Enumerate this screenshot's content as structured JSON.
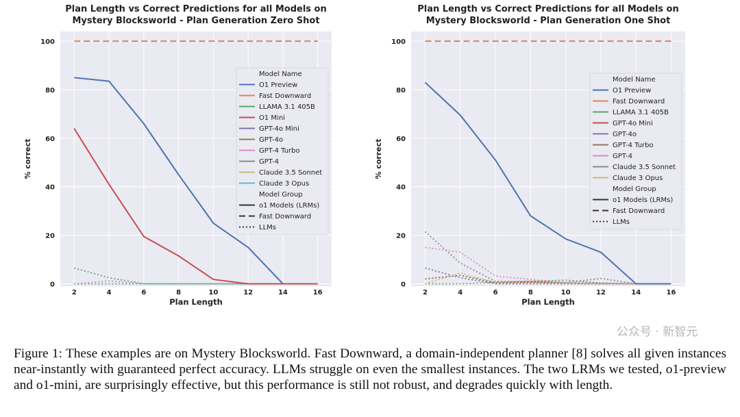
{
  "chart_data": [
    {
      "type": "line",
      "title": "Plan Length vs Correct Predictions for all Models on\nMystery Blocksworld - Plan Generation Zero Shot",
      "xlabel": "Plan Length",
      "ylabel": "% correct",
      "x": [
        2,
        4,
        6,
        8,
        10,
        12,
        14,
        16
      ],
      "xticks": [
        "2",
        "4",
        "6",
        "8",
        "10",
        "12",
        "14",
        "16"
      ],
      "yticks": [
        "0",
        "20",
        "40",
        "60",
        "80",
        "100"
      ],
      "xlim": [
        1.2,
        16.8
      ],
      "ylim": [
        -1,
        104
      ],
      "grid": true,
      "legend_position": "right",
      "legend_title_models": "Model Name",
      "legend_title_groups": "Model Group",
      "groups": [
        {
          "name": "o1 Models (LRMs)",
          "style": "solid"
        },
        {
          "name": "Fast Downward",
          "style": "dashed"
        },
        {
          "name": "LLMs",
          "style": "dotted"
        }
      ],
      "series": [
        {
          "name": "O1 Preview",
          "color": "#4c72b0",
          "style": "solid",
          "values": [
            85,
            83.5,
            66,
            45,
            25,
            15,
            0,
            0
          ]
        },
        {
          "name": "Fast Downward",
          "color": "#dd8452",
          "style": "dashed",
          "values": [
            100,
            100,
            100,
            100,
            100,
            100,
            100,
            100
          ]
        },
        {
          "name": "LLAMA 3.1 405B",
          "color": "#55a868",
          "style": "dotted",
          "values": [
            6.5,
            2.5,
            0,
            0,
            0,
            0,
            0,
            0
          ]
        },
        {
          "name": "O1 Mini",
          "color": "#c44e52",
          "style": "solid",
          "values": [
            64,
            41,
            19.5,
            11.5,
            1.8,
            0,
            0,
            0
          ]
        },
        {
          "name": "GPT-4o Mini",
          "color": "#8172b3",
          "style": "dotted",
          "values": [
            0,
            0,
            0,
            0,
            0,
            0,
            0,
            0
          ]
        },
        {
          "name": "GPT-4o",
          "color": "#937860",
          "style": "dotted",
          "values": [
            0,
            0,
            0,
            0,
            0,
            0,
            0,
            0
          ]
        },
        {
          "name": "GPT-4 Turbo",
          "color": "#da8bc3",
          "style": "dotted",
          "values": [
            0,
            1.2,
            0,
            0,
            0,
            0,
            0,
            0
          ]
        },
        {
          "name": "GPT-4",
          "color": "#8c8c8c",
          "style": "dotted",
          "values": [
            0,
            0,
            0,
            0,
            0,
            0,
            0,
            0
          ]
        },
        {
          "name": "Claude 3.5 Sonnet",
          "color": "#ccb974",
          "style": "dotted",
          "values": [
            0,
            0,
            0,
            0,
            0,
            0,
            0,
            0
          ]
        },
        {
          "name": "Claude 3 Opus",
          "color": "#64b5cd",
          "style": "dotted",
          "values": [
            0,
            0,
            0,
            0,
            0,
            0,
            0,
            0
          ]
        }
      ]
    },
    {
      "type": "line",
      "title": "Plan Length vs Correct Predictions for all Models on\nMystery Blocksworld - Plan Generation One Shot",
      "xlabel": "Plan Length",
      "ylabel": "% correct",
      "x": [
        2,
        4,
        6,
        8,
        10,
        12,
        14,
        16
      ],
      "xticks": [
        "2",
        "4",
        "6",
        "8",
        "10",
        "12",
        "14",
        "16"
      ],
      "yticks": [
        "0",
        "20",
        "40",
        "60",
        "80",
        "100"
      ],
      "xlim": [
        1.2,
        16.8
      ],
      "ylim": [
        -1,
        104
      ],
      "grid": true,
      "legend_position": "right",
      "legend_title_models": "Model Name",
      "legend_title_groups": "Model Group",
      "groups": [
        {
          "name": "o1 Models (LRMs)",
          "style": "solid"
        },
        {
          "name": "Fast Downward",
          "style": "dashed"
        },
        {
          "name": "LLMs",
          "style": "dotted"
        }
      ],
      "series": [
        {
          "name": "O1 Preview",
          "color": "#4c72b0",
          "style": "solid",
          "values": [
            83,
            69.5,
            51,
            28,
            18.5,
            13,
            0,
            0
          ]
        },
        {
          "name": "Fast Downward",
          "color": "#dd8452",
          "style": "dashed",
          "values": [
            100,
            100,
            100,
            100,
            100,
            100,
            100,
            100
          ]
        },
        {
          "name": "LLAMA 3.1 405B",
          "color": "#55a868",
          "style": "dotted",
          "values": [
            0,
            0,
            0.5,
            1,
            1.5,
            0.3,
            0,
            0
          ]
        },
        {
          "name": "GPT-4o Mini",
          "color": "#c44e52",
          "style": "dotted",
          "values": [
            2,
            3.5,
            0.3,
            0.5,
            0.3,
            0,
            0,
            0
          ]
        },
        {
          "name": "GPT-4o",
          "color": "#8172b3",
          "style": "dotted",
          "values": [
            6.5,
            2.5,
            0,
            0,
            0,
            0,
            0,
            0
          ]
        },
        {
          "name": "GPT-4 Turbo",
          "color": "#937860",
          "style": "dotted",
          "values": [
            2,
            3.5,
            0.5,
            1,
            0.5,
            0.3,
            0,
            0
          ]
        },
        {
          "name": "GPT-4",
          "color": "#da8bc3",
          "style": "dotted",
          "values": [
            15,
            13,
            3.2,
            1.8,
            0.5,
            0,
            0,
            0
          ]
        },
        {
          "name": "Claude 3.5 Sonnet",
          "color": "#8c8c8c",
          "style": "dotted",
          "values": [
            21.5,
            8.5,
            1,
            1,
            0.5,
            2.2,
            0,
            0
          ]
        },
        {
          "name": "Claude 3 Opus",
          "color": "#ccb974",
          "style": "dotted",
          "values": [
            0,
            4.5,
            0.5,
            0.5,
            0.3,
            0,
            0,
            0
          ]
        }
      ]
    }
  ],
  "caption": "Figure 1: These examples are on Mystery Blocksworld. Fast Downward, a domain-independent planner [8] solves all given instances near-instantly with guaranteed perfect accuracy. LLMs struggle on even the smallest instances. The two LRMs we tested, o1-preview and o1-mini, are surprisingly effective, but this performance is still not robust, and degrades quickly with length.",
  "watermark": "公众号 · 新智元"
}
